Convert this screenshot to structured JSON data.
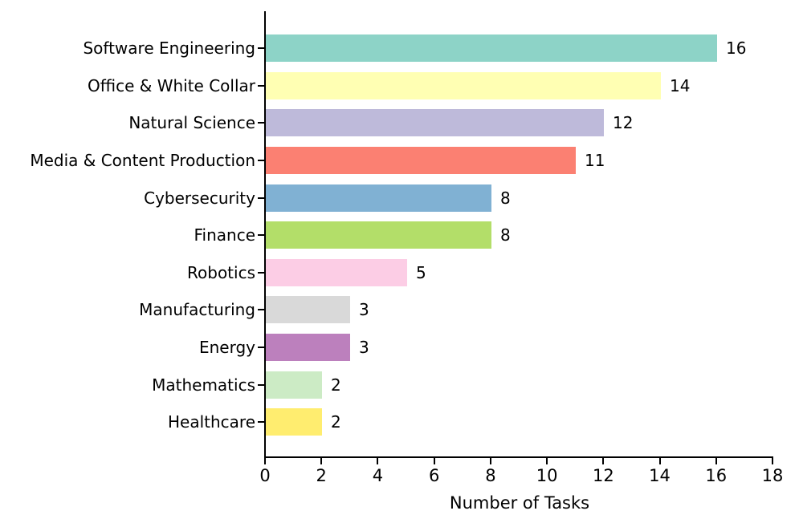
{
  "figure": {
    "background": "#ffffff",
    "axis_color": "#000000",
    "text_color": "#000000"
  },
  "chart_data": {
    "type": "bar",
    "orientation": "horizontal",
    "title": "",
    "xlabel": "Number of Tasks",
    "ylabel": "",
    "xlim": [
      0,
      18
    ],
    "xticks": [
      "0",
      "2",
      "4",
      "6",
      "8",
      "10",
      "12",
      "14",
      "16",
      "18"
    ],
    "grid": false,
    "legend": "none",
    "categories": [
      "Software Engineering",
      "Office & White Collar",
      "Natural Science",
      "Media & Content Production",
      "Cybersecurity",
      "Finance",
      "Robotics",
      "Manufacturing",
      "Energy",
      "Mathematics",
      "Healthcare"
    ],
    "values": [
      16,
      14,
      12,
      11,
      8,
      8,
      5,
      3,
      3,
      2,
      2
    ],
    "value_labels": [
      "16",
      "14",
      "12",
      "11",
      "8",
      "8",
      "5",
      "3",
      "3",
      "2",
      "2"
    ],
    "bar_colors": [
      "#8dd3c7",
      "#ffffb3",
      "#bebada",
      "#fb8072",
      "#80b1d3",
      "#b3de69",
      "#fccde5",
      "#d9d9d9",
      "#bc80bd",
      "#ccebc5",
      "#ffed6f"
    ]
  }
}
